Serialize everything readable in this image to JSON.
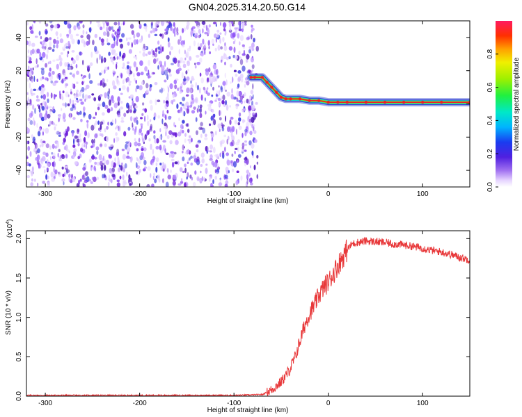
{
  "title": "GN04.2025.314.20.50.G14",
  "colors": {
    "snr_line": "#e8383a",
    "scatter": "#6a1bd8",
    "trace_outer": "#2a3bd0",
    "trace_mid": "#17d8c8",
    "trace_inner": "#7ae02a",
    "trace_core": "#ee2222"
  },
  "chart_data": [
    {
      "type": "heatmap",
      "title": "GN04.2025.314.20.50.G14",
      "xlabel": "Height of straight line (km)",
      "ylabel": "Frequency (Hz)",
      "xlim": [
        -320,
        150
      ],
      "ylim": [
        -50,
        50
      ],
      "x_ticks": [
        -300,
        -200,
        -100,
        0,
        100
      ],
      "y_ticks": [
        -40,
        -20,
        0,
        20,
        40
      ],
      "noise_region_x": [
        -320,
        -75
      ],
      "colorbar": {
        "label": "Normalized spectral amplitude",
        "range": [
          0,
          1
        ],
        "ticks": [
          0.0,
          0.2,
          0.4,
          0.6,
          0.8
        ],
        "colormap": "rainbow"
      },
      "trace": {
        "x": [
          -82,
          -78,
          -70,
          -65,
          -60,
          -55,
          -50,
          -45,
          -40,
          -30,
          -20,
          -10,
          0,
          10,
          20,
          40,
          60,
          80,
          100,
          120,
          150
        ],
        "y": [
          16,
          16,
          16,
          13,
          10,
          7,
          4,
          3,
          3,
          3,
          2,
          2,
          1,
          1,
          1,
          1,
          1,
          1,
          1,
          1,
          1
        ]
      }
    },
    {
      "type": "line",
      "xlabel": "Height of straight line (km)",
      "ylabel": "SNR (10 * v/v)",
      "y_multiplier": "(x10^4)",
      "y_multiplier_base": "(x10",
      "y_multiplier_exp": "4",
      "y_multiplier_close": ")",
      "xlim": [
        -320,
        150
      ],
      "ylim": [
        0,
        2.1
      ],
      "x_ticks": [
        -300,
        -200,
        -100,
        0,
        100
      ],
      "y_ticks": [
        "0.0",
        "0.5",
        "1.0",
        "1.5",
        "2.0"
      ],
      "series": [
        {
          "x": [
            -320,
            -300,
            -250,
            -200,
            -150,
            -100,
            -70,
            -60,
            -50,
            -45,
            -40,
            -35,
            -30,
            -25,
            -20,
            -15,
            -10,
            -5,
            0,
            5,
            10,
            15,
            20,
            25,
            30,
            40,
            50,
            60,
            70,
            80,
            90,
            100,
            110,
            120,
            130,
            140,
            150
          ],
          "values": [
            0.01,
            0.01,
            0.01,
            0.01,
            0.01,
            0.01,
            0.02,
            0.08,
            0.18,
            0.26,
            0.36,
            0.5,
            0.7,
            0.9,
            1.05,
            1.15,
            1.28,
            1.38,
            1.45,
            1.55,
            1.66,
            1.76,
            1.86,
            1.93,
            1.95,
            1.97,
            1.96,
            1.95,
            1.93,
            1.92,
            1.9,
            1.88,
            1.85,
            1.83,
            1.8,
            1.76,
            1.73
          ]
        }
      ]
    }
  ]
}
